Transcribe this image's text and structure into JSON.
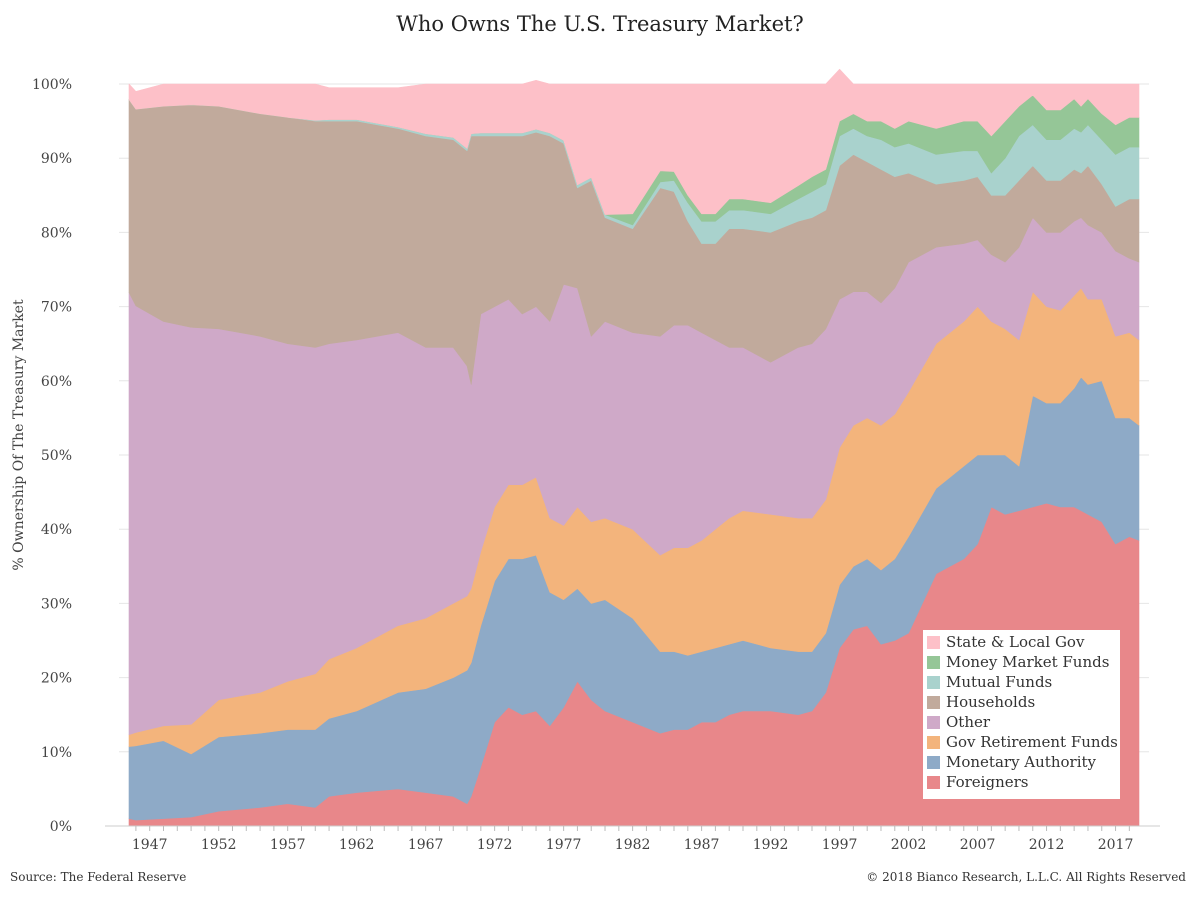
{
  "chart_data": {
    "type": "area",
    "stacked": true,
    "title": "Who Owns The U.S. Treasury Market?",
    "ylabel": "% Ownership Of The Treasury Market",
    "xlabel": "",
    "xlim": [
      1945.5,
      2018.7
    ],
    "ylim": [
      0,
      100
    ],
    "x_ticks": [
      1947,
      1952,
      1957,
      1962,
      1967,
      1972,
      1977,
      1982,
      1987,
      1992,
      1997,
      2002,
      2007,
      2012,
      2017
    ],
    "y_ticks": [
      "0%",
      "10%",
      "20%",
      "30%",
      "40%",
      "50%",
      "60%",
      "70%",
      "80%",
      "90%",
      "100%"
    ],
    "grid": true,
    "legend_position": "bottom-right",
    "years": [
      1945.5,
      1946,
      1948,
      1950,
      1952,
      1955,
      1957,
      1959,
      1960,
      1962,
      1965,
      1967,
      1969,
      1970,
      1970.3,
      1971,
      1972,
      1973,
      1974,
      1975,
      1976,
      1977,
      1978,
      1979,
      1980,
      1982,
      1984,
      1985,
      1986,
      1987,
      1988,
      1989,
      1990,
      1992,
      1994,
      1995,
      1996,
      1997,
      1998,
      1999,
      2000,
      2001,
      2002,
      2004,
      2006,
      2007,
      2008,
      2009,
      2010,
      2011,
      2012,
      2013,
      2014,
      2014.5,
      2015,
      2016,
      2017,
      2018,
      2018.7
    ],
    "series": [
      {
        "name": "Foreigners",
        "color": "#e8878a",
        "values": [
          1,
          0.8,
          1,
          1.2,
          2,
          2.5,
          3,
          2.5,
          4,
          4.5,
          5,
          4.5,
          4,
          3,
          4,
          8,
          14,
          16,
          15,
          15.5,
          13.5,
          16,
          19.5,
          17,
          15.5,
          14,
          12.5,
          13,
          13,
          14,
          14,
          15,
          15.5,
          15.5,
          15,
          15.5,
          18,
          24,
          26.5,
          27,
          24.5,
          25,
          26,
          34,
          36,
          38,
          43,
          42,
          42.5,
          43,
          43.5,
          43,
          43,
          42.5,
          42,
          41,
          38,
          39,
          38.5
        ]
      },
      {
        "name": "Monetary Authority",
        "color": "#8eaac7",
        "values": [
          9.7,
          10,
          10.5,
          8.5,
          10,
          10,
          10,
          10.5,
          10.5,
          11,
          13,
          14,
          16,
          18,
          18,
          19,
          19,
          20,
          21,
          21,
          18,
          14.5,
          12.5,
          13,
          15,
          14,
          11,
          10.5,
          10,
          9.5,
          10,
          9.5,
          9.5,
          8.5,
          8.5,
          8,
          8,
          8.5,
          8.5,
          9,
          10,
          11,
          13,
          11.5,
          12.5,
          12,
          7,
          8,
          6,
          15,
          13.5,
          14,
          16,
          18,
          17.5,
          19,
          17,
          16,
          15.5
        ]
      },
      {
        "name": "Gov Retirement Funds",
        "color": "#f3b47c",
        "values": [
          1.6,
          1.8,
          2,
          4,
          5,
          5.5,
          6.5,
          7.5,
          8,
          8.5,
          9,
          9.5,
          10,
          10,
          10,
          10,
          10,
          10,
          10,
          10.5,
          10,
          10,
          11,
          11,
          11,
          12,
          13,
          14,
          14.5,
          15,
          16,
          17,
          17.5,
          18,
          18,
          18,
          18,
          18.5,
          19,
          19,
          19.5,
          19.5,
          19.5,
          19.5,
          19.5,
          20,
          18,
          17,
          17,
          14,
          13,
          12.5,
          12.5,
          12,
          11.5,
          11,
          11,
          11.5,
          11.5
        ]
      },
      {
        "name": "Other",
        "color": "#cfa9c8",
        "values": [
          59.6,
          57.5,
          54.5,
          53.5,
          50,
          48,
          45.5,
          44,
          42.5,
          41.5,
          39.5,
          36.5,
          34.5,
          31,
          27.5,
          32,
          27,
          25,
          23,
          23,
          26.5,
          32.5,
          29.5,
          25,
          26.5,
          26.5,
          29.5,
          30,
          30,
          28,
          25.5,
          23,
          22,
          20.5,
          23,
          23.5,
          23,
          20,
          18,
          17,
          16.5,
          17,
          17.5,
          13,
          10.5,
          9,
          9,
          9,
          12.5,
          10,
          10,
          10.5,
          10,
          9.5,
          10,
          9,
          11.5,
          10,
          10.5
        ]
      },
      {
        "name": "Households",
        "color": "#c1aa9c",
        "values": [
          26,
          26.5,
          29,
          30,
          30,
          30,
          30.5,
          30.5,
          30,
          29.5,
          27.5,
          28.5,
          28,
          29,
          33.5,
          24,
          23,
          22,
          24,
          23.5,
          25,
          19,
          13.5,
          21,
          14,
          14,
          20,
          18,
          14,
          12,
          13,
          16,
          16,
          17.5,
          17,
          17,
          16,
          18,
          18.5,
          17.5,
          18,
          15,
          12,
          8.5,
          8.5,
          8.5,
          8,
          9,
          9,
          7,
          7,
          7,
          7,
          6,
          8,
          6.5,
          6,
          8,
          8.5
        ]
      },
      {
        "name": "Mutual Funds",
        "color": "#a9d2cd",
        "values": [
          0,
          0,
          0,
          0,
          0,
          0,
          0,
          0.1,
          0.2,
          0.2,
          0.2,
          0.3,
          0.3,
          0.3,
          0.3,
          0.4,
          0.4,
          0.4,
          0.4,
          0.4,
          0.4,
          0.4,
          0.4,
          0.4,
          0.4,
          0.5,
          0.8,
          1.5,
          2.5,
          3,
          3,
          2.5,
          2.5,
          2.5,
          3,
          3.5,
          3.5,
          4,
          3.5,
          3.5,
          4,
          4,
          4,
          4,
          4,
          3.5,
          3,
          5,
          6,
          5.5,
          5.5,
          5.5,
          5.5,
          5.5,
          5.5,
          6,
          7,
          7,
          7
        ]
      },
      {
        "name": "Money Market Funds",
        "color": "#95c697",
        "values": [
          0,
          0,
          0,
          0,
          0,
          0,
          0,
          0,
          0,
          0,
          0,
          0,
          0,
          0,
          0,
          0,
          0,
          0,
          0,
          0,
          0,
          0,
          0,
          0,
          0,
          1.5,
          1.5,
          1.2,
          1,
          1,
          1,
          1.5,
          1.5,
          1.5,
          1.8,
          2,
          2,
          2,
          2,
          2,
          2.5,
          2.5,
          3,
          3.5,
          4,
          4,
          5,
          5,
          4,
          4,
          4,
          4,
          4,
          3.5,
          3.5,
          3.5,
          4,
          4,
          4
        ]
      },
      {
        "name": "State & Local Gov",
        "color": "#fdc0c8",
        "values": [
          2.1,
          2.4,
          3,
          2.8,
          3,
          4,
          4.5,
          4.9,
          4.3,
          4.3,
          5.3,
          6.7,
          7.2,
          8.7,
          6.7,
          6.6,
          6.6,
          6.6,
          6.6,
          6.6,
          6.6,
          7.6,
          13.6,
          12.6,
          17.6,
          17.5,
          11.7,
          11.8,
          15,
          17.5,
          17.5,
          15.5,
          15.5,
          16,
          13.7,
          12.5,
          11.5,
          7,
          4,
          5,
          5,
          6,
          5,
          6,
          5,
          5,
          7,
          5,
          3,
          1.5,
          3.5,
          3.5,
          2,
          3,
          2,
          4,
          5.5,
          4.5,
          4.5
        ]
      }
    ],
    "legend_order": [
      "State & Local Gov",
      "Money Market Funds",
      "Mutual Funds",
      "Households",
      "Other",
      "Gov Retirement Funds",
      "Monetary Authority",
      "Foreigners"
    ]
  },
  "footer": {
    "source": "Source: The Federal Reserve",
    "copyright": "© 2018 Bianco Research, L.L.C. All Rights Reserved"
  }
}
